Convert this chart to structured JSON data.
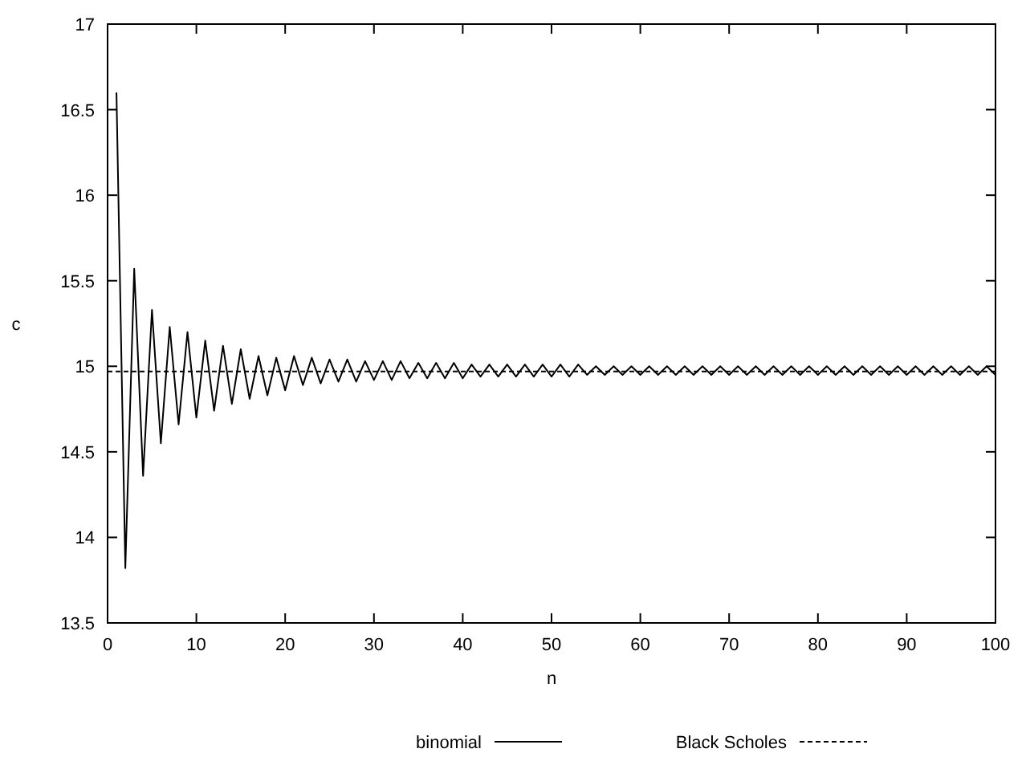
{
  "chart_data": {
    "type": "line",
    "xlabel": "n",
    "ylabel": "c",
    "xlim": [
      0,
      100
    ],
    "ylim": [
      13.5,
      17
    ],
    "xticks": [
      0,
      10,
      20,
      30,
      40,
      50,
      60,
      70,
      80,
      90,
      100
    ],
    "yticks": [
      13.5,
      14,
      14.5,
      15,
      15.5,
      16,
      16.5,
      17
    ],
    "x": [
      1,
      2,
      3,
      4,
      5,
      6,
      7,
      8,
      9,
      10,
      11,
      12,
      13,
      14,
      15,
      16,
      17,
      18,
      19,
      20,
      21,
      22,
      23,
      24,
      25,
      26,
      27,
      28,
      29,
      30,
      31,
      32,
      33,
      34,
      35,
      36,
      37,
      38,
      39,
      40,
      41,
      42,
      43,
      44,
      45,
      46,
      47,
      48,
      49,
      50,
      51,
      52,
      53,
      54,
      55,
      56,
      57,
      58,
      59,
      60,
      61,
      62,
      63,
      64,
      65,
      66,
      67,
      68,
      69,
      70,
      71,
      72,
      73,
      74,
      75,
      76,
      77,
      78,
      79,
      80,
      81,
      82,
      83,
      84,
      85,
      86,
      87,
      88,
      89,
      90,
      91,
      92,
      93,
      94,
      95,
      96,
      97,
      98,
      99,
      100
    ],
    "grid": false,
    "legend": "bottom",
    "series": [
      {
        "name": "binomial",
        "color": "#000000",
        "line_style": "solid",
        "values": [
          16.6,
          13.82,
          15.57,
          14.36,
          15.33,
          14.55,
          15.23,
          14.66,
          15.2,
          14.7,
          15.15,
          14.74,
          15.12,
          14.78,
          15.1,
          14.81,
          15.06,
          14.83,
          15.05,
          14.86,
          15.06,
          14.89,
          15.05,
          14.9,
          15.04,
          14.91,
          15.04,
          14.91,
          15.03,
          14.92,
          15.03,
          14.92,
          15.03,
          14.93,
          15.02,
          14.93,
          15.02,
          14.93,
          15.02,
          14.93,
          15.01,
          14.94,
          15.01,
          14.94,
          15.01,
          14.94,
          15.01,
          14.94,
          15.01,
          14.94,
          15.01,
          14.94,
          15.01,
          14.95,
          15.0,
          14.95,
          15.0,
          14.95,
          15.0,
          14.95,
          15.0,
          14.95,
          15.0,
          14.95,
          15.0,
          14.95,
          15.0,
          14.95,
          15.0,
          14.95,
          15.0,
          14.95,
          15.0,
          14.95,
          15.0,
          14.95,
          15.0,
          14.95,
          15.0,
          14.95,
          15.0,
          14.95,
          15.0,
          14.95,
          15.0,
          14.95,
          15.0,
          14.95,
          15.0,
          14.95,
          15.0,
          14.95,
          15.0,
          14.95,
          15.0,
          14.95,
          15.0,
          14.95,
          15.0,
          14.95
        ]
      },
      {
        "name": "Black Scholes",
        "color": "#000000",
        "line_style": "dashed",
        "x": [
          0,
          100
        ],
        "values": [
          14.97,
          14.97
        ]
      }
    ]
  }
}
